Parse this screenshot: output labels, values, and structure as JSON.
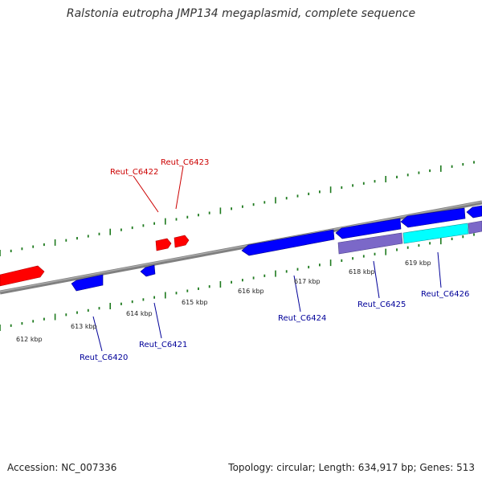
{
  "title": "Ralstonia eutropha JMP134 megaplasmid, complete sequence",
  "footer": {
    "accession": "Accession: NC_007336",
    "summary": "Topology: circular; Length: 634,917 bp; Genes: 513"
  },
  "colors": {
    "forward_gene": "#ff0000",
    "reverse_gene": "#0000ff",
    "reverse_gene_alt": "#7b68c8",
    "highlight_gene": "#00ffff",
    "backbone": "#808080",
    "tick": "#1e7a1e",
    "forward_label": "#cc0000",
    "reverse_label": "#000099"
  },
  "kbp_labels": [
    "612 kbp",
    "613 kbp",
    "614 kbp",
    "615 kbp",
    "616 kbp",
    "617 kbp",
    "618 kbp",
    "619 kbp"
  ],
  "gene_labels": {
    "forward": [
      "Reut_C6422",
      "Reut_C6423"
    ],
    "reverse": [
      "Reut_C6420",
      "Reut_C6421",
      "Reut_C6424",
      "Reut_C6425",
      "Reut_C6426"
    ]
  }
}
